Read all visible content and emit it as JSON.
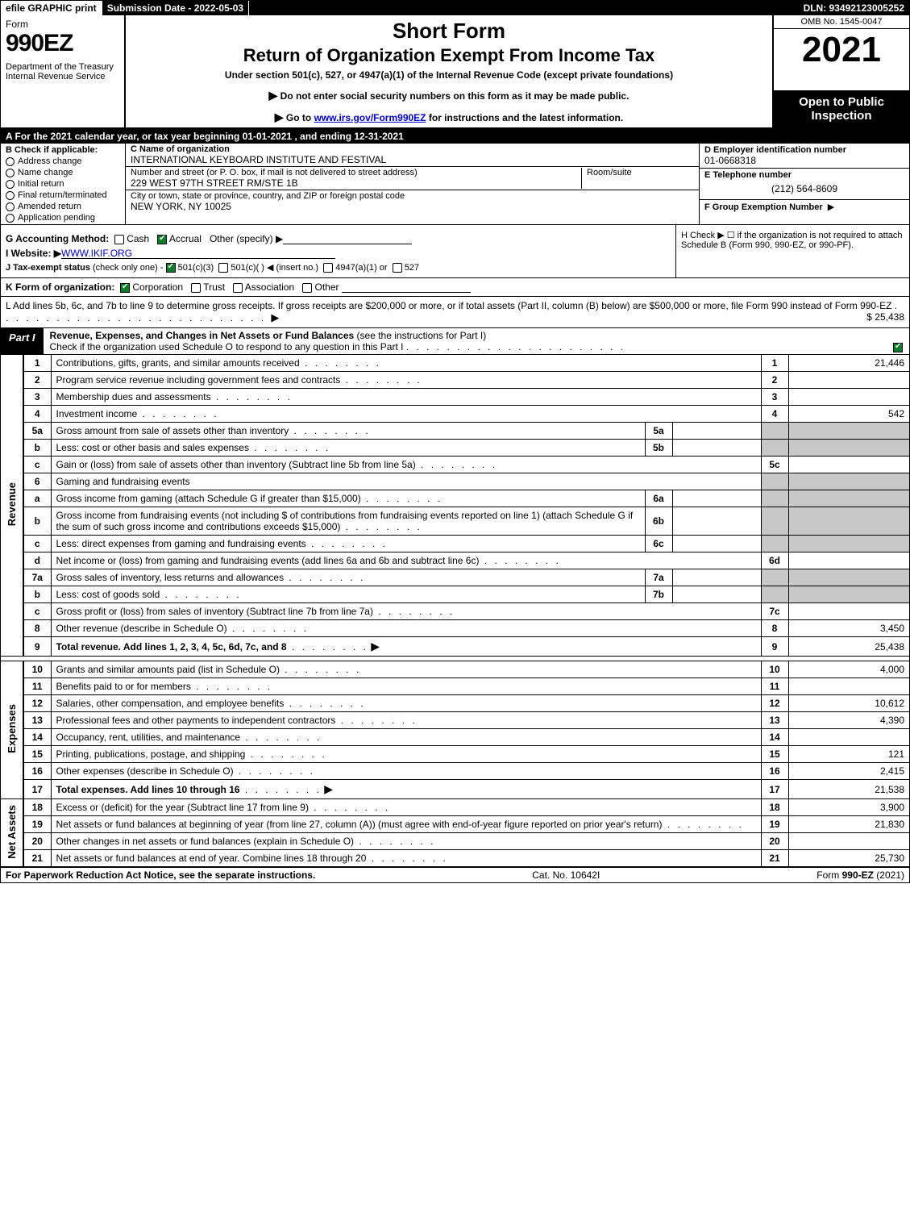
{
  "topbar": {
    "efile": "efile GRAPHIC print",
    "submission": "Submission Date - 2022-05-03",
    "dln": "DLN: 93492123005252"
  },
  "header": {
    "form_word": "Form",
    "form_num": "990EZ",
    "dept": "Department of the Treasury\nInternal Revenue Service",
    "title_short": "Short Form",
    "title_main": "Return of Organization Exempt From Income Tax",
    "subtitle": "Under section 501(c), 527, or 4947(a)(1) of the Internal Revenue Code (except private foundations)",
    "instr1": "Do not enter social security numbers on this form as it may be made public.",
    "instr2_pre": "Go to ",
    "instr2_link": "www.irs.gov/Form990EZ",
    "instr2_post": " for instructions and the latest information.",
    "omb": "OMB No. 1545-0047",
    "year": "2021",
    "inspection": "Open to Public Inspection"
  },
  "row_a": "A  For the 2021 calendar year, or tax year beginning 01-01-2021 , and ending 12-31-2021",
  "col_b": {
    "head": "B  Check if applicable:",
    "items": [
      "Address change",
      "Name change",
      "Initial return",
      "Final return/terminated",
      "Amended return",
      "Application pending"
    ]
  },
  "col_c": {
    "name_label": "C Name of organization",
    "name": "INTERNATIONAL KEYBOARD INSTITUTE AND FESTIVAL",
    "street_label": "Number and street (or P. O. box, if mail is not delivered to street address)",
    "street": "229 WEST 97TH STREET RM/STE 1B",
    "room_label": "Room/suite",
    "city_label": "City or town, state or province, country, and ZIP or foreign postal code",
    "city": "NEW YORK, NY  10025"
  },
  "col_def": {
    "d_label": "D Employer identification number",
    "ein": "01-0668318",
    "e_label": "E Telephone number",
    "phone": "(212) 564-8609",
    "f_label": "F Group Exemption Number"
  },
  "gh": {
    "g_label": "G Accounting Method:",
    "g_cash": "Cash",
    "g_accrual": "Accrual",
    "g_other": "Other (specify)",
    "h_text": "H  Check ▶  ☐  if the organization is not required to attach Schedule B (Form 990, 990-EZ, or 990-PF).",
    "i_label": "I Website: ▶",
    "i_link": "WWW.IKIF.ORG",
    "j_label": "J Tax-exempt status",
    "j_note": "(check only one) -",
    "j_501c3": "501(c)(3)",
    "j_501c": "501(c)(  ) ◀ (insert no.)",
    "j_4947": "4947(a)(1) or",
    "j_527": "527"
  },
  "k_row": {
    "label": "K Form of organization:",
    "corp": "Corporation",
    "trust": "Trust",
    "assoc": "Association",
    "other": "Other"
  },
  "l_row": {
    "text": "L Add lines 5b, 6c, and 7b to line 9 to determine gross receipts. If gross receipts are $200,000 or more, or if total assets (Part II, column (B) below) are $500,000 or more, file Form 990 instead of Form 990-EZ",
    "amount": "$ 25,438"
  },
  "part1": {
    "tab": "Part I",
    "title": "Revenue, Expenses, and Changes in Net Assets or Fund Balances",
    "title_note": "(see the instructions for Part I)",
    "check_text": "Check if the organization used Schedule O to respond to any question in this Part I"
  },
  "sections": {
    "revenue": "Revenue",
    "expenses": "Expenses",
    "netassets": "Net Assets"
  },
  "lines": [
    {
      "n": "1",
      "desc": "Contributions, gifts, grants, and similar amounts received",
      "ln": "1",
      "amt": "21,446"
    },
    {
      "n": "2",
      "desc": "Program service revenue including government fees and contracts",
      "ln": "2",
      "amt": ""
    },
    {
      "n": "3",
      "desc": "Membership dues and assessments",
      "ln": "3",
      "amt": ""
    },
    {
      "n": "4",
      "desc": "Investment income",
      "ln": "4",
      "amt": "542"
    },
    {
      "n": "5a",
      "desc": "Gross amount from sale of assets other than inventory",
      "sub": "5a",
      "subval": ""
    },
    {
      "n": "b",
      "desc": "Less: cost or other basis and sales expenses",
      "sub": "5b",
      "subval": ""
    },
    {
      "n": "c",
      "desc": "Gain or (loss) from sale of assets other than inventory (Subtract line 5b from line 5a)",
      "ln": "5c",
      "amt": ""
    },
    {
      "n": "6",
      "desc": "Gaming and fundraising events"
    },
    {
      "n": "a",
      "desc": "Gross income from gaming (attach Schedule G if greater than $15,000)",
      "sub": "6a",
      "subval": ""
    },
    {
      "n": "b",
      "desc": "Gross income from fundraising events (not including $                    of contributions from fundraising events reported on line 1) (attach Schedule G if the sum of such gross income and contributions exceeds $15,000)",
      "sub": "6b",
      "subval": ""
    },
    {
      "n": "c",
      "desc": "Less: direct expenses from gaming and fundraising events",
      "sub": "6c",
      "subval": ""
    },
    {
      "n": "d",
      "desc": "Net income or (loss) from gaming and fundraising events (add lines 6a and 6b and subtract line 6c)",
      "ln": "6d",
      "amt": ""
    },
    {
      "n": "7a",
      "desc": "Gross sales of inventory, less returns and allowances",
      "sub": "7a",
      "subval": ""
    },
    {
      "n": "b",
      "desc": "Less: cost of goods sold",
      "sub": "7b",
      "subval": ""
    },
    {
      "n": "c",
      "desc": "Gross profit or (loss) from sales of inventory (Subtract line 7b from line 7a)",
      "ln": "7c",
      "amt": ""
    },
    {
      "n": "8",
      "desc": "Other revenue (describe in Schedule O)",
      "ln": "8",
      "amt": "3,450"
    },
    {
      "n": "9",
      "desc": "Total revenue. Add lines 1, 2, 3, 4, 5c, 6d, 7c, and 8",
      "ln": "9",
      "amt": "25,438",
      "bold": true,
      "arrow": true
    }
  ],
  "exp_lines": [
    {
      "n": "10",
      "desc": "Grants and similar amounts paid (list in Schedule O)",
      "ln": "10",
      "amt": "4,000"
    },
    {
      "n": "11",
      "desc": "Benefits paid to or for members",
      "ln": "11",
      "amt": ""
    },
    {
      "n": "12",
      "desc": "Salaries, other compensation, and employee benefits",
      "ln": "12",
      "amt": "10,612"
    },
    {
      "n": "13",
      "desc": "Professional fees and other payments to independent contractors",
      "ln": "13",
      "amt": "4,390"
    },
    {
      "n": "14",
      "desc": "Occupancy, rent, utilities, and maintenance",
      "ln": "14",
      "amt": ""
    },
    {
      "n": "15",
      "desc": "Printing, publications, postage, and shipping",
      "ln": "15",
      "amt": "121"
    },
    {
      "n": "16",
      "desc": "Other expenses (describe in Schedule O)",
      "ln": "16",
      "amt": "2,415"
    },
    {
      "n": "17",
      "desc": "Total expenses. Add lines 10 through 16",
      "ln": "17",
      "amt": "21,538",
      "bold": true,
      "arrow": true
    }
  ],
  "na_lines": [
    {
      "n": "18",
      "desc": "Excess or (deficit) for the year (Subtract line 17 from line 9)",
      "ln": "18",
      "amt": "3,900"
    },
    {
      "n": "19",
      "desc": "Net assets or fund balances at beginning of year (from line 27, column (A)) (must agree with end-of-year figure reported on prior year's return)",
      "ln": "19",
      "amt": "21,830"
    },
    {
      "n": "20",
      "desc": "Other changes in net assets or fund balances (explain in Schedule O)",
      "ln": "20",
      "amt": ""
    },
    {
      "n": "21",
      "desc": "Net assets or fund balances at end of year. Combine lines 18 through 20",
      "ln": "21",
      "amt": "25,730"
    }
  ],
  "footer": {
    "left": "For Paperwork Reduction Act Notice, see the separate instructions.",
    "mid": "Cat. No. 10642I",
    "right": "Form 990-EZ (2021)"
  },
  "colors": {
    "black": "#000000",
    "white": "#ffffff",
    "shade": "#c8c8c8",
    "link": "#0000cc",
    "check_green": "#0a7d2b"
  }
}
